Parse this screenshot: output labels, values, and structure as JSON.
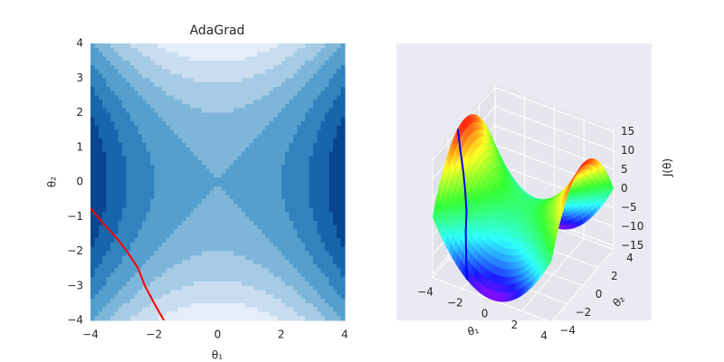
{
  "chart_data": [
    {
      "type": "contour",
      "title": "AdaGrad",
      "xlabel": "θ₁",
      "ylabel": "θ₂",
      "xlim": [
        -4,
        4
      ],
      "ylim": [
        -4,
        4
      ],
      "xticks": [
        {
          "value": -4,
          "label": "−4"
        },
        {
          "value": -2,
          "label": "−2"
        },
        0,
        2,
        4
      ],
      "yticks": [
        {
          "value": -4,
          "label": "−4"
        },
        {
          "value": -3,
          "label": "−3"
        },
        {
          "value": -2,
          "label": "−2"
        },
        {
          "value": -1,
          "label": "−1"
        },
        0,
        1,
        2,
        3,
        4
      ],
      "series": [
        {
          "color": "#ff0000",
          "x": [
            -4,
            -3.6,
            -3.2,
            -2.86,
            -2.5,
            -2.29,
            -2.0,
            -1.69
          ],
          "values": [
            -0.76,
            -1.2,
            -1.6,
            -2.0,
            -2.5,
            -3.0,
            -3.5,
            -4.0
          ]
        }
      ]
    },
    {
      "type": "surface3d",
      "xlabel": "θ₁",
      "ylabel": "θ₂",
      "zlabel": "J(θ)",
      "xlim": [
        -4,
        4
      ],
      "ylim": [
        -4,
        4
      ],
      "zlim": [
        -16,
        16
      ],
      "xticks": [
        {
          "value": -4,
          "label": "−4"
        },
        {
          "value": -2,
          "label": "−2"
        },
        0,
        2,
        4
      ],
      "yticks": [
        {
          "value": -4,
          "label": "−4"
        },
        {
          "value": -2,
          "label": "−2"
        },
        0,
        2,
        4
      ],
      "zticks": [
        {
          "value": -15,
          "label": "−15"
        },
        {
          "value": -10,
          "label": "−10"
        },
        {
          "value": -5,
          "label": "−5"
        },
        0,
        5,
        10,
        15
      ],
      "series": [
        {
          "color": "#0000ff",
          "x": [
            -4,
            -3.6,
            -3.2,
            -2.86,
            -2.5,
            -2.29,
            -2.0,
            -1.69
          ],
          "y": [
            -0.76,
            -1.2,
            -1.6,
            -2.0,
            -2.5,
            -3.0,
            -3.5,
            -4.0
          ],
          "z": [
            15.42,
            11.52,
            7.68,
            4.18,
            0,
            -3.76,
            -8.25,
            -13.14
          ]
        }
      ]
    }
  ]
}
